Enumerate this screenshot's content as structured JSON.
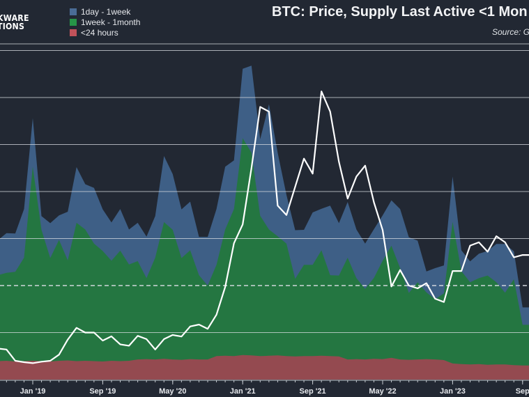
{
  "logo": {
    "lines": [
      "KWARE",
      "TIONS"
    ]
  },
  "chart_data": {
    "type": "area",
    "stacked": true,
    "title": "BTC: Price, Supply Last Active <1 Mon",
    "source": "Source: G",
    "legend_position": "top-left",
    "colors": {
      "1day - 1week": "#3e5f86",
      "1week - 1month": "#247641",
      "<24 hours": "#944a50",
      "price": "#ffffff",
      "background": "#222833"
    },
    "x": [
      "2018-09",
      "2018-10",
      "2018-11",
      "2018-12",
      "2019-01",
      "2019-02",
      "2019-03",
      "2019-04",
      "2019-05",
      "2019-06",
      "2019-07",
      "2019-08",
      "2019-09",
      "2019-10",
      "2019-11",
      "2019-12",
      "2020-01",
      "2020-02",
      "2020-03",
      "2020-04",
      "2020-05",
      "2020-06",
      "2020-07",
      "2020-08",
      "2020-09",
      "2020-10",
      "2020-11",
      "2020-12",
      "2021-01",
      "2021-02",
      "2021-03",
      "2021-04",
      "2021-05",
      "2021-06",
      "2021-07",
      "2021-08",
      "2021-09",
      "2021-10",
      "2021-11",
      "2021-12",
      "2022-01",
      "2022-02",
      "2022-03",
      "2022-04",
      "2022-05",
      "2022-06",
      "2022-07",
      "2022-08",
      "2022-09",
      "2022-10",
      "2022-11",
      "2022-12",
      "2023-01",
      "2023-02",
      "2023-03",
      "2023-04",
      "2023-05",
      "2023-06",
      "2023-07",
      "2023-08",
      "2023-09"
    ],
    "xtick_labels": [
      {
        "label": "Jan '19",
        "date": "2019-01"
      },
      {
        "label": "Sep '19",
        "date": "2019-09"
      },
      {
        "label": "May '20",
        "date": "2020-05"
      },
      {
        "label": "Jan '21",
        "date": "2021-01"
      },
      {
        "label": "Sep '21",
        "date": "2021-09"
      },
      {
        "label": "May '22",
        "date": "2022-05"
      },
      {
        "label": "Jan '23",
        "date": "2023-01"
      },
      {
        "label": "Sep",
        "date": "2023-09"
      }
    ],
    "series": [
      {
        "name": "<24 hours",
        "values": [
          5.5,
          5.6,
          5.4,
          5.5,
          5.6,
          5.5,
          5.4,
          5.6,
          5.7,
          5.5,
          5.6,
          5.5,
          5.4,
          5.6,
          5.5,
          5.6,
          6,
          6.1,
          6,
          6.2,
          6,
          5.9,
          6.1,
          6,
          6,
          7,
          7.1,
          7,
          7.3,
          7.2,
          7,
          7.1,
          7.2,
          7,
          6.9,
          7,
          7,
          7.1,
          7,
          6.9,
          6,
          6.1,
          6,
          6.2,
          6.1,
          6.5,
          6,
          5.9,
          6,
          6.1,
          6,
          5.8,
          4.8,
          4.6,
          4.5,
          4.6,
          4.4,
          4.5,
          4.5,
          4.3,
          4.2
        ]
      },
      {
        "name": "1week - 1month",
        "values": [
          25.6,
          26.2,
          26.7,
          30.8,
          57.8,
          39.1,
          30.8,
          36.0,
          29.8,
          41.2,
          39.1,
          35.0,
          32.9,
          29.8,
          32.9,
          28.7,
          29.3,
          24.1,
          30.3,
          40.7,
          38.6,
          30.3,
          32.4,
          25.1,
          22.0,
          27.2,
          37.6,
          43.8,
          64.6,
          60.4,
          41.8,
          37.6,
          35.5,
          33.5,
          23.1,
          27.2,
          27.2,
          31.4,
          24.1,
          24.1,
          30.3,
          24.1,
          21.0,
          24.1,
          29.3,
          33.4,
          27.2,
          19.9,
          23.0,
          19.9,
          17.9,
          19.9,
          42.2,
          27.7,
          24.5,
          25.6,
          26.6,
          24.5,
          21.4,
          25.6,
          12.1
        ]
      },
      {
        "name": "1day - 1week",
        "values": [
          10.4,
          11.8,
          11.4,
          14.5,
          14.5,
          4.1,
          10.4,
          7.3,
          14.5,
          16.6,
          13.5,
          16.6,
          12.4,
          11.4,
          12.4,
          10.4,
          11.4,
          12.4,
          12.4,
          19.7,
          16.6,
          14.5,
          14.5,
          11.4,
          14.5,
          16.6,
          18.7,
          14.5,
          20.7,
          25.9,
          22.8,
          37.3,
          24.9,
          14.5,
          14.5,
          10.4,
          15.6,
          12.4,
          20.7,
          15.6,
          16.6,
          14.5,
          13.5,
          14.5,
          13.5,
          13.5,
          17.6,
          16.6,
          12.4,
          6.2,
          9.3,
          8.3,
          13.5,
          6.2,
          6.2,
          7.3,
          7.3,
          11.4,
          14.5,
          8.3,
          5.2
        ]
      }
    ],
    "supply_ylim": [
      0,
      100
    ],
    "price": {
      "name": "price",
      "unit": "USD",
      "values": [
        6600,
        6400,
        4000,
        3700,
        3500,
        3800,
        4000,
        5300,
        8500,
        11000,
        10000,
        10000,
        8300,
        9200,
        7500,
        7200,
        9300,
        8600,
        6400,
        8600,
        9500,
        9150,
        11300,
        11700,
        10800,
        13800,
        19700,
        29000,
        33000,
        45000,
        58000,
        57000,
        37000,
        35000,
        41000,
        47000,
        43800,
        61300,
        57000,
        46300,
        38500,
        43200,
        45500,
        37700,
        31800,
        19800,
        23300,
        20000,
        19400,
        20500,
        17200,
        16500,
        23100,
        23100,
        28500,
        29200,
        27200,
        30500,
        29200,
        26000,
        26500
      ],
      "ylim": [
        0,
        71400
      ],
      "gridlines": [
        10000,
        30000,
        40000,
        50000,
        60000,
        70000
      ],
      "dashed_line": 20000
    },
    "grid": true
  }
}
